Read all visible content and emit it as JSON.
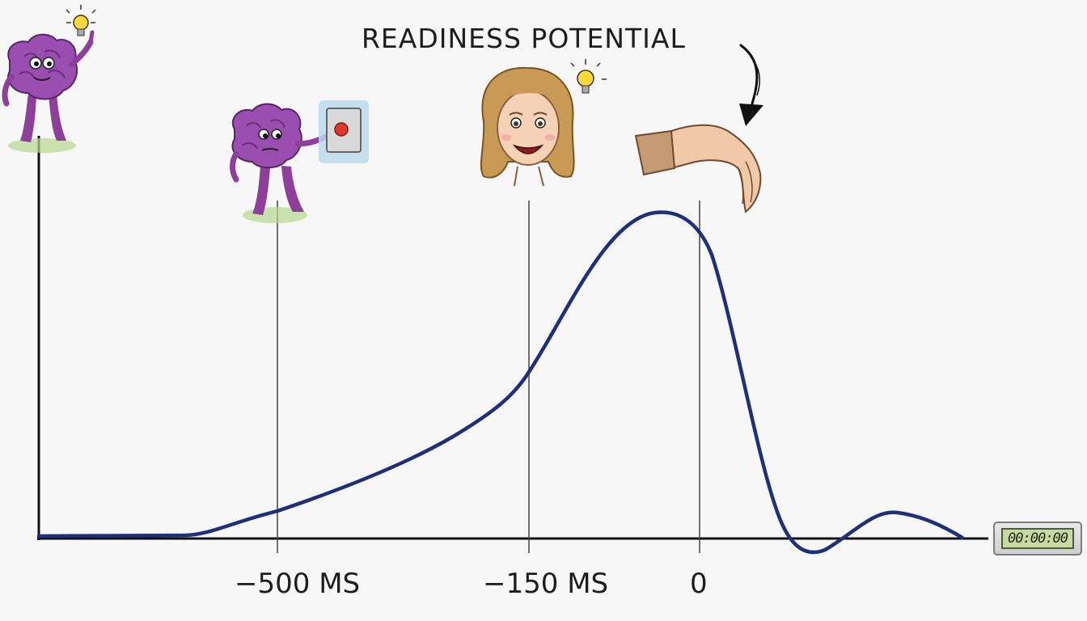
{
  "diagram": {
    "title": "READINESS POTENTIAL",
    "ticks": [
      {
        "label": "−500 MS"
      },
      {
        "label": "−150 MS"
      },
      {
        "label": "0"
      }
    ],
    "timer_display": "00:00:00",
    "curve_color": "#1f2f7a",
    "icons": [
      "brain-character-idea-icon",
      "brain-character-pressing-button-icon",
      "woman-face-idea-icon",
      "hand-moving-icon",
      "down-arrow-icon",
      "stopwatch-icon"
    ]
  }
}
